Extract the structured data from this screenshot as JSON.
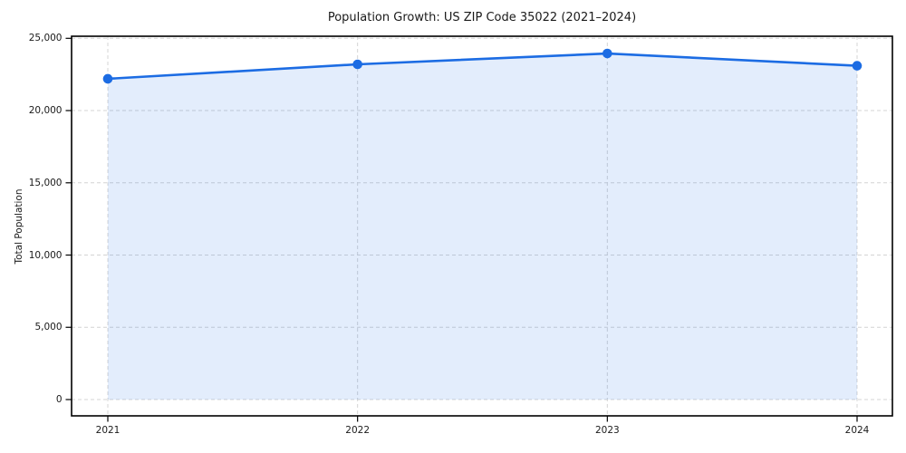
{
  "figure": {
    "background": "#ffffff"
  },
  "chart_data": {
    "type": "area",
    "title": "Population Growth: US ZIP Code 35022 (2021–2024)",
    "xlabel": "",
    "ylabel": "Total Population",
    "categories": [
      "2021",
      "2022",
      "2023",
      "2024"
    ],
    "series": [
      {
        "name": "Total Population",
        "values": [
          22200,
          23200,
          23950,
          23100
        ]
      }
    ],
    "ylim": [
      0,
      25000
    ],
    "ytick_values": [
      0,
      5000,
      10000,
      15000,
      20000,
      25000
    ],
    "ytick_labels": [
      "0",
      "5,000",
      "10,000",
      "15,000",
      "20,000",
      "25,000"
    ],
    "grid": {
      "visible": true,
      "style": "dashed",
      "axes": "both"
    },
    "legend": {
      "visible": false
    },
    "marker": "circle",
    "colors": {
      "line": "#1c6ce3",
      "fill": "rgba(28,108,227,0.12)",
      "grid": "#d4d4d4",
      "spine": "#000000",
      "text": "#1a1a1a"
    }
  }
}
